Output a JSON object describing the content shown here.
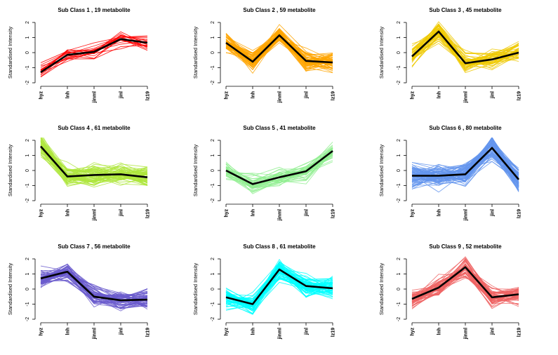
{
  "chart_data": [
    {
      "type": "line",
      "title": "Sub Class  1  , 19 metabolite",
      "ylabel": "Standardised Intensity",
      "categories": [
        "hyz",
        "lnh",
        "jinml",
        "jinl",
        "lz19"
      ],
      "ylim": [
        -2,
        2
      ],
      "yticks": [
        -2,
        -1,
        0,
        1,
        2
      ],
      "color": "#ff0000",
      "n_profiles": 19,
      "mean": [
        -1.3,
        -0.15,
        0.05,
        0.9,
        0.65
      ],
      "spread": 0.4
    },
    {
      "type": "line",
      "title": "Sub Class  4  , 61 metabolite",
      "ylabel": "Standardised Intensity",
      "categories": [
        "hyz",
        "lnh",
        "jinml",
        "jinl",
        "lz19"
      ],
      "ylim": [
        -2,
        2
      ],
      "yticks": [
        -2,
        -1,
        0,
        1,
        2
      ],
      "color": "#aee63c",
      "n_profiles": 61,
      "mean": [
        1.6,
        -0.4,
        -0.3,
        -0.25,
        -0.45
      ],
      "spread": 0.5
    },
    {
      "type": "line",
      "title": "Sub Class  7  , 56 metabolite",
      "ylabel": "Standardised Intensity",
      "categories": [
        "hyz",
        "lnh",
        "jinml",
        "jinl",
        "lz19"
      ],
      "ylim": [
        -2,
        2
      ],
      "yticks": [
        -2,
        -1,
        0,
        1,
        2
      ],
      "color": "#6a5acd",
      "n_profiles": 56,
      "mean": [
        0.7,
        1.15,
        -0.5,
        -0.75,
        -0.7
      ],
      "spread": 0.45
    },
    {
      "type": "line",
      "title": "Sub Class  2  , 59 metabolite",
      "ylabel": "Standardised Intensity",
      "categories": [
        "hyz",
        "lnh",
        "jinml",
        "jinl",
        "lz19"
      ],
      "ylim": [
        -2,
        2
      ],
      "yticks": [
        -2,
        -1,
        0,
        1,
        2
      ],
      "color": "#ffa500",
      "n_profiles": 59,
      "mean": [
        0.65,
        -0.6,
        1.15,
        -0.55,
        -0.65
      ],
      "spread": 0.45
    },
    {
      "type": "line",
      "title": "Sub Class  5  , 41 metabolite",
      "ylabel": "Standardised Intensity",
      "categories": [
        "hyz",
        "lnh",
        "jinml",
        "jinl",
        "lz19"
      ],
      "ylim": [
        -2,
        2
      ],
      "yticks": [
        -2,
        -1,
        0,
        1,
        2
      ],
      "color": "#90ee90",
      "n_profiles": 41,
      "mean": [
        0.0,
        -0.9,
        -0.45,
        -0.05,
        1.3
      ],
      "spread": 0.45
    },
    {
      "type": "line",
      "title": "Sub Class  8  , 61 metabolite",
      "ylabel": "Standardised Intensity",
      "categories": [
        "hyz",
        "lnh",
        "jinml",
        "jinl",
        "lz19"
      ],
      "ylim": [
        -2,
        2
      ],
      "yticks": [
        -2,
        -1,
        0,
        1,
        2
      ],
      "color": "#00ffff",
      "n_profiles": 61,
      "mean": [
        -0.55,
        -1.0,
        1.3,
        0.2,
        0.05
      ],
      "spread": 0.5
    },
    {
      "type": "line",
      "title": "Sub Class  3  , 45 metabolite",
      "ylabel": "Standardised Intensity",
      "categories": [
        "hyz",
        "lnh",
        "jinml",
        "jinl",
        "lz19"
      ],
      "ylim": [
        -2,
        2
      ],
      "yticks": [
        -2,
        -1,
        0,
        1,
        2
      ],
      "color": "#eec900",
      "n_profiles": 45,
      "mean": [
        -0.25,
        1.4,
        -0.7,
        -0.45,
        0.0
      ],
      "spread": 0.5
    },
    {
      "type": "line",
      "title": "Sub Class  6  , 80 metabolite",
      "ylabel": "Standardised Intensity",
      "categories": [
        "hyz",
        "lnh",
        "jinml",
        "jinl",
        "lz19"
      ],
      "ylim": [
        -2,
        2
      ],
      "yticks": [
        -2,
        -1,
        0,
        1,
        2
      ],
      "color": "#6495ed",
      "n_profiles": 80,
      "mean": [
        -0.35,
        -0.35,
        -0.25,
        1.5,
        -0.6
      ],
      "spread": 0.55
    },
    {
      "type": "line",
      "title": "Sub Class  9  , 52 metabolite",
      "ylabel": "Standardised Intensity",
      "categories": [
        "hyz",
        "lnh",
        "jinml",
        "jinl",
        "lz19"
      ],
      "ylim": [
        -2,
        2
      ],
      "yticks": [
        -2,
        -1,
        0,
        1,
        2
      ],
      "color": "#ee6363",
      "n_profiles": 52,
      "mean": [
        -0.65,
        0.1,
        1.45,
        -0.55,
        -0.35
      ],
      "spread": 0.45
    }
  ]
}
